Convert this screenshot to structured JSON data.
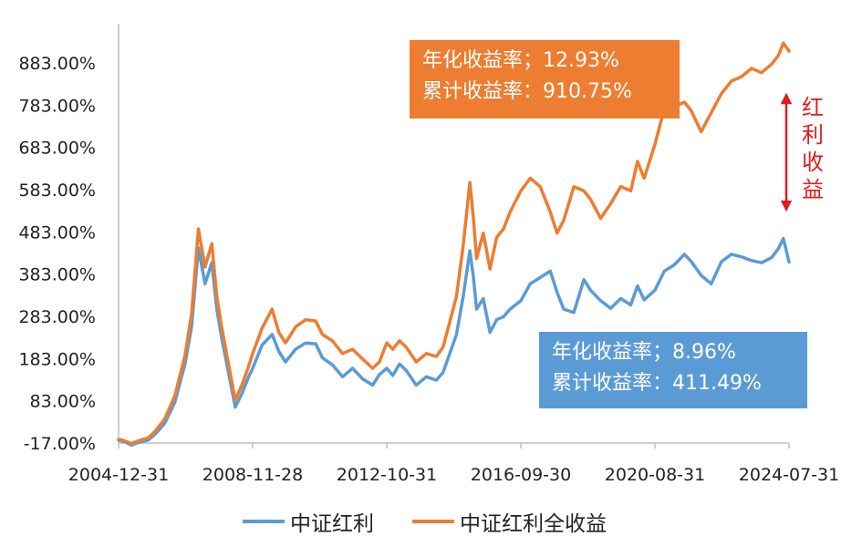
{
  "chart_data": {
    "type": "line",
    "title": "",
    "xlabel": "",
    "ylabel": "",
    "ylim": [
      -17,
      920
    ],
    "y_ticks": [
      "883.00%",
      "783.00%",
      "683.00%",
      "583.00%",
      "483.00%",
      "383.00%",
      "283.00%",
      "183.00%",
      "83.00%",
      "-17.00%"
    ],
    "y_tick_values": [
      883,
      783,
      683,
      583,
      483,
      383,
      283,
      183,
      83,
      -17
    ],
    "x_ticks": [
      "2004-12-31",
      "2008-11-28",
      "2012-10-31",
      "2016-09-30",
      "2020-08-31",
      "2024-07-31"
    ],
    "x_tick_values": [
      2004.92,
      2008.92,
      2012.92,
      2016.92,
      2020.92,
      2024.92
    ],
    "xlim": [
      2004.92,
      2024.92
    ],
    "series": [
      {
        "name": "中证红利",
        "color": "#5b9bd5",
        "x": [
          2004.92,
          2005.1,
          2005.3,
          2005.5,
          2005.8,
          2006.0,
          2006.3,
          2006.6,
          2006.9,
          2007.1,
          2007.3,
          2007.5,
          2007.7,
          2007.85,
          2008.0,
          2008.2,
          2008.4,
          2008.6,
          2008.8,
          2008.92,
          2009.2,
          2009.5,
          2009.7,
          2009.9,
          2010.2,
          2010.5,
          2010.8,
          2011.0,
          2011.3,
          2011.6,
          2011.9,
          2012.2,
          2012.5,
          2012.7,
          2012.92,
          2013.1,
          2013.3,
          2013.5,
          2013.8,
          2014.1,
          2014.4,
          2014.6,
          2014.8,
          2015.0,
          2015.2,
          2015.4,
          2015.5,
          2015.6,
          2015.8,
          2016.0,
          2016.2,
          2016.4,
          2016.6,
          2016.92,
          2017.2,
          2017.5,
          2017.8,
          2018.0,
          2018.2,
          2018.5,
          2018.8,
          2019.0,
          2019.3,
          2019.6,
          2019.9,
          2020.2,
          2020.4,
          2020.6,
          2020.92,
          2021.2,
          2021.5,
          2021.8,
          2022.0,
          2022.3,
          2022.6,
          2022.9,
          2023.2,
          2023.5,
          2023.8,
          2024.1,
          2024.4,
          2024.6,
          2024.75,
          2024.92
        ],
        "values": [
          -10,
          -14,
          -22,
          -16,
          -10,
          3,
          30,
          80,
          170,
          260,
          445,
          360,
          410,
          300,
          230,
          150,
          68,
          100,
          140,
          160,
          215,
          240,
          200,
          175,
          205,
          220,
          218,
          185,
          168,
          140,
          160,
          135,
          120,
          145,
          160,
          143,
          170,
          155,
          120,
          140,
          132,
          150,
          195,
          240,
          330,
          438,
          380,
          300,
          325,
          245,
          275,
          282,
          300,
          320,
          360,
          375,
          390,
          340,
          300,
          292,
          370,
          345,
          320,
          302,
          325,
          310,
          355,
          322,
          345,
          390,
          405,
          430,
          413,
          380,
          360,
          412,
          430,
          424,
          415,
          410,
          422,
          443,
          467,
          411.49
        ]
      },
      {
        "name": "中证红利全收益",
        "color": "#ed7d31",
        "x": [
          2004.92,
          2005.1,
          2005.3,
          2005.5,
          2005.8,
          2006.0,
          2006.3,
          2006.6,
          2006.9,
          2007.1,
          2007.3,
          2007.5,
          2007.7,
          2007.85,
          2008.0,
          2008.2,
          2008.4,
          2008.6,
          2008.8,
          2008.92,
          2009.2,
          2009.5,
          2009.7,
          2009.9,
          2010.2,
          2010.5,
          2010.8,
          2011.0,
          2011.3,
          2011.6,
          2011.9,
          2012.2,
          2012.5,
          2012.7,
          2012.92,
          2013.1,
          2013.3,
          2013.5,
          2013.8,
          2014.1,
          2014.4,
          2014.6,
          2014.8,
          2015.0,
          2015.2,
          2015.4,
          2015.5,
          2015.6,
          2015.8,
          2016.0,
          2016.2,
          2016.4,
          2016.6,
          2016.92,
          2017.2,
          2017.5,
          2017.8,
          2018.0,
          2018.2,
          2018.5,
          2018.8,
          2019.0,
          2019.3,
          2019.6,
          2019.9,
          2020.2,
          2020.4,
          2020.6,
          2020.92,
          2021.2,
          2021.5,
          2021.8,
          2022.0,
          2022.3,
          2022.6,
          2022.9,
          2023.2,
          2023.5,
          2023.8,
          2024.1,
          2024.4,
          2024.6,
          2024.75,
          2024.92
        ],
        "values": [
          -8,
          -12,
          -18,
          -12,
          -5,
          10,
          40,
          95,
          190,
          290,
          490,
          400,
          455,
          330,
          255,
          170,
          85,
          120,
          165,
          195,
          255,
          300,
          245,
          220,
          258,
          275,
          272,
          240,
          225,
          195,
          205,
          182,
          160,
          175,
          220,
          205,
          225,
          210,
          175,
          195,
          188,
          210,
          270,
          330,
          450,
          600,
          520,
          420,
          480,
          395,
          470,
          490,
          530,
          580,
          610,
          590,
          530,
          480,
          510,
          590,
          580,
          560,
          515,
          550,
          590,
          580,
          650,
          610,
          690,
          775,
          780,
          790,
          770,
          720,
          765,
          810,
          840,
          850,
          870,
          860,
          880,
          900,
          930,
          910.75
        ]
      }
    ],
    "annotations": {
      "total_return_box": {
        "line1": "年化收益率；12.93%",
        "line2": "累计收益率：910.75%",
        "color": "#ed7d31"
      },
      "price_return_box": {
        "line1": "年化收益率；8.96%",
        "line2": "累计收益率：411.49%",
        "color": "#5b9bd5"
      },
      "dividend_label": [
        "红",
        "利",
        "收",
        "益"
      ],
      "dividend_label_color": "#e11b1b"
    }
  }
}
